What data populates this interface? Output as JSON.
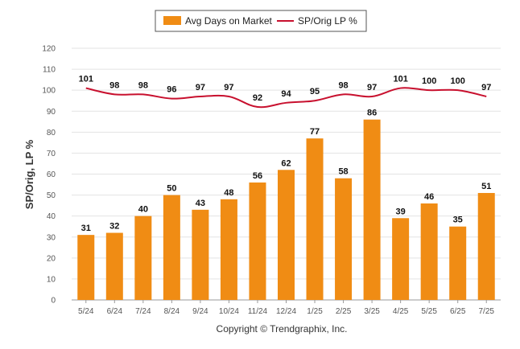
{
  "chart_data": {
    "type": "bar",
    "categories": [
      "5/24",
      "6/24",
      "7/24",
      "8/24",
      "9/24",
      "10/24",
      "11/24",
      "12/24",
      "1/25",
      "2/25",
      "3/25",
      "4/25",
      "5/25",
      "6/25",
      "7/25"
    ],
    "series": [
      {
        "name": "Avg Days on Market",
        "type": "bar",
        "color": "#f08c14",
        "values": [
          31,
          32,
          40,
          50,
          43,
          48,
          56,
          62,
          77,
          58,
          86,
          39,
          46,
          35,
          51
        ]
      },
      {
        "name": "SP/Orig LP %",
        "type": "line",
        "color": "#c8102e",
        "values": [
          101,
          98,
          98,
          96,
          97,
          97,
          92,
          94,
          95,
          98,
          97,
          101,
          100,
          100,
          97
        ]
      }
    ],
    "ylabel": "SP/Orig, LP %",
    "xlabel": "",
    "ylim": [
      0,
      120
    ],
    "yticks": [
      0,
      10,
      20,
      30,
      40,
      50,
      60,
      70,
      80,
      90,
      100,
      110,
      120
    ],
    "grid": true,
    "legend_position": "top-center",
    "footer": "Copyright © Trendgraphix, Inc."
  }
}
